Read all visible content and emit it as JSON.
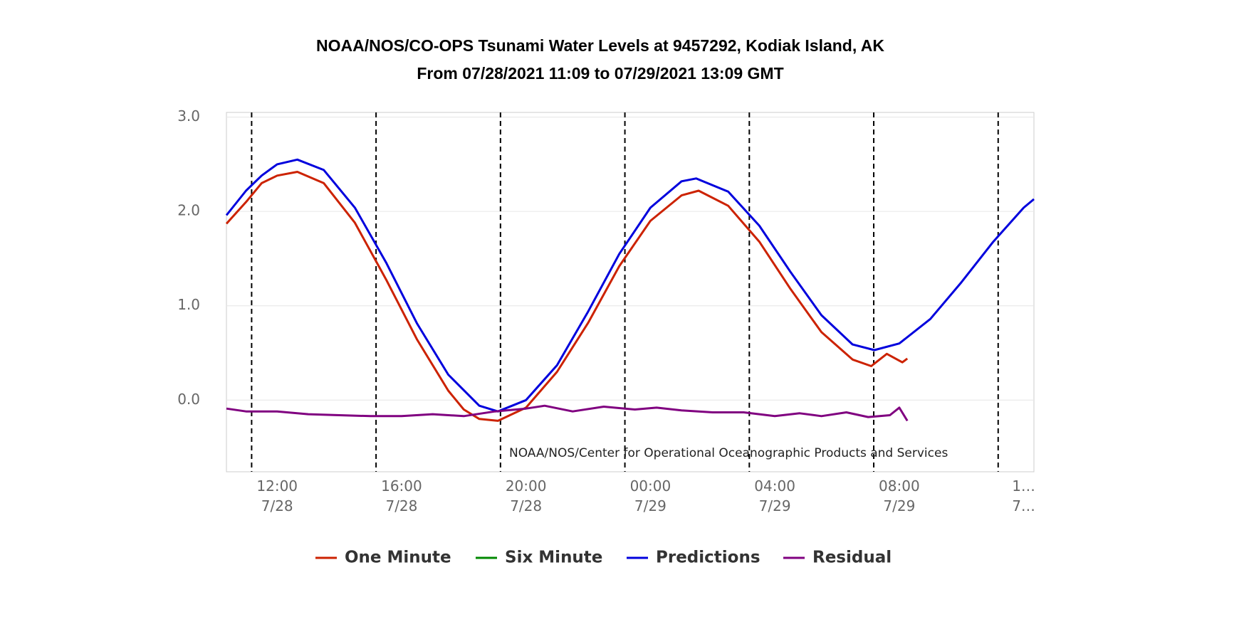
{
  "chart_data": {
    "type": "line",
    "title": "NOAA/NOS/CO-OPS Tsunami Water Levels at 9457292, Kodiak Island, AK",
    "subtitle": "From 07/28/2021 11:09 to 07/29/2021 13:09 GMT",
    "annotation": "NOAA/NOS/Center for Operational Oceanographic Products and Services",
    "xlim": [
      10.37,
      36.33
    ],
    "xticks": [
      {
        "value": 12,
        "label": "12:00 7/28"
      },
      {
        "value": 16,
        "label": "16:00 7/28"
      },
      {
        "value": 20,
        "label": "20:00 7/28"
      },
      {
        "value": 24,
        "label": "00:00 7/29"
      },
      {
        "value": 28,
        "label": "04:00 7/29"
      },
      {
        "value": 32,
        "label": "08:00 7/29"
      },
      {
        "value": 36,
        "label": "1… 7…"
      }
    ],
    "ylim": [
      -0.76,
      3.05
    ],
    "yticks": [
      {
        "value": 0,
        "label": "0.0"
      },
      {
        "value": 1,
        "label": "1.0"
      },
      {
        "value": 2,
        "label": "2.0"
      },
      {
        "value": 3,
        "label": "3.0"
      }
    ],
    "grid": true,
    "vlines": [
      11.18,
      15.18,
      19.18,
      23.18,
      27.18,
      31.18,
      35.18
    ],
    "series": [
      {
        "name": "One Minute",
        "color": "#cc2200",
        "x": [
          10.37,
          11,
          11.5,
          12,
          12.65,
          13.5,
          14.5,
          15.5,
          16.5,
          17.5,
          18,
          18.5,
          19.1,
          20,
          21,
          22,
          23,
          24,
          25,
          25.55,
          26.5,
          27.5,
          28.5,
          29.5,
          30.5,
          31.1,
          31.6,
          32.1,
          32.26
        ],
        "values": [
          1.87,
          2.1,
          2.3,
          2.38,
          2.42,
          2.3,
          1.88,
          1.28,
          0.64,
          0.1,
          -0.1,
          -0.2,
          -0.22,
          -0.08,
          0.3,
          0.82,
          1.42,
          1.9,
          2.17,
          2.22,
          2.06,
          1.68,
          1.18,
          0.72,
          0.43,
          0.36,
          0.49,
          0.4,
          0.44
        ]
      },
      {
        "name": "Six Minute",
        "color": "#008800",
        "x": [],
        "values": []
      },
      {
        "name": "Predictions",
        "color": "#0000dd",
        "x": [
          10.37,
          11,
          11.5,
          12,
          12.65,
          13.5,
          14.5,
          15.5,
          16.5,
          17.5,
          18.5,
          19.1,
          20,
          21,
          22,
          23,
          24,
          25,
          25.47,
          26.5,
          27.5,
          28.5,
          29.5,
          30.5,
          31.2,
          32,
          33,
          34,
          35,
          36,
          36.33
        ],
        "values": [
          1.96,
          2.22,
          2.38,
          2.5,
          2.55,
          2.44,
          2.04,
          1.46,
          0.81,
          0.27,
          -0.06,
          -0.12,
          0.0,
          0.37,
          0.94,
          1.55,
          2.04,
          2.32,
          2.35,
          2.21,
          1.85,
          1.36,
          0.9,
          0.59,
          0.53,
          0.6,
          0.86,
          1.25,
          1.67,
          2.04,
          2.13
        ]
      },
      {
        "name": "Residual",
        "color": "#800080",
        "x": [
          10.37,
          11,
          12,
          13,
          14,
          15,
          16,
          17,
          18,
          19,
          20,
          20.6,
          21.5,
          22.5,
          23.5,
          24.2,
          25,
          26,
          27,
          28,
          28.8,
          29.5,
          30.3,
          31,
          31.7,
          32,
          32.26
        ],
        "values": [
          -0.09,
          -0.12,
          -0.12,
          -0.15,
          -0.16,
          -0.17,
          -0.17,
          -0.15,
          -0.17,
          -0.12,
          -0.09,
          -0.06,
          -0.12,
          -0.07,
          -0.1,
          -0.08,
          -0.11,
          -0.13,
          -0.13,
          -0.17,
          -0.14,
          -0.17,
          -0.13,
          -0.18,
          -0.16,
          -0.08,
          -0.22
        ]
      }
    ]
  }
}
